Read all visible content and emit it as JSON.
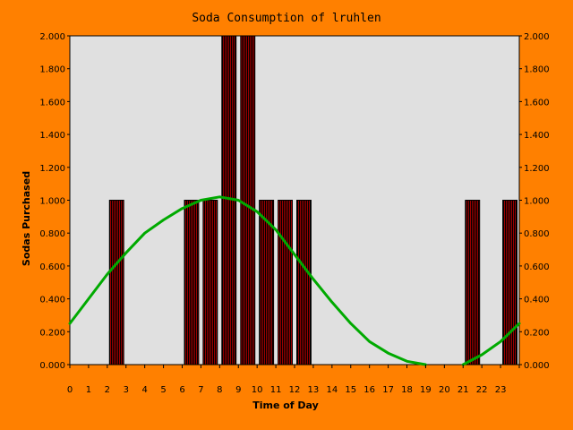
{
  "chart_data": {
    "type": "bar",
    "title": "Soda Consumption of lruhlen",
    "xlabel": "Time of Day",
    "ylabel": "Sodas Purchased",
    "x_ticks": [
      "0",
      "1",
      "2",
      "3",
      "4",
      "5",
      "6",
      "7",
      "8",
      "9",
      "10",
      "11",
      "12",
      "13",
      "14",
      "15",
      "16",
      "17",
      "18",
      "19",
      "20",
      "21",
      "22",
      "23"
    ],
    "y_ticks": [
      "0.000",
      "0.200",
      "0.400",
      "0.600",
      "0.800",
      "1.000",
      "1.200",
      "1.400",
      "1.600",
      "1.800",
      "2.000"
    ],
    "ylim": [
      0,
      2
    ],
    "xlim": [
      0,
      24
    ],
    "bar_hours": [
      2.5,
      6.5,
      7.5,
      8.5,
      9.5,
      10.5,
      11.5,
      12.5,
      21.5,
      23.5
    ],
    "bar_values": [
      1,
      1,
      1,
      2,
      2,
      1,
      1,
      1,
      1,
      1
    ],
    "trend": {
      "x": [
        0,
        1,
        2,
        3,
        4,
        5,
        6,
        7,
        8,
        9,
        10,
        11,
        12,
        13,
        14,
        15,
        16,
        17,
        18,
        19,
        21,
        22,
        23,
        24
      ],
      "y": [
        0.25,
        0.4,
        0.55,
        0.68,
        0.8,
        0.88,
        0.95,
        1.0,
        1.02,
        1.0,
        0.93,
        0.82,
        0.67,
        0.52,
        0.38,
        0.25,
        0.14,
        0.07,
        0.02,
        0.0,
        0.0,
        0.06,
        0.14,
        0.25
      ]
    },
    "grid": false,
    "colors": {
      "background": "#ff8000",
      "plot_area": "#e0e0e0",
      "bar_fill": "#990000",
      "bar_stripe": "#000000",
      "trend_line": "#00aa00",
      "text": "#000000"
    }
  }
}
